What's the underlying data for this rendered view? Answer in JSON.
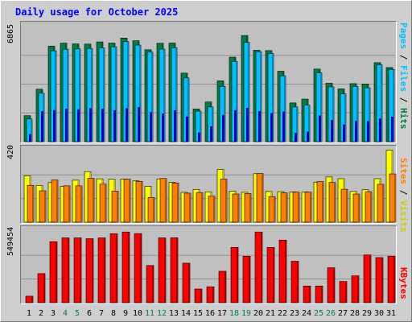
{
  "title": "Daily usage for October 2025",
  "colors": {
    "hits": "#008040",
    "files": "#00c0ff",
    "pages": "#00c0ff",
    "visits": "#ffff00",
    "sites": "#ff8000",
    "kbytes": "#ff0000",
    "weekday_label": "#000000",
    "weekend_label": "#007f46"
  },
  "chart_data": [
    {
      "type": "bar",
      "name": "hits_files_pages",
      "y_max_label": "6865",
      "ylim": [
        0,
        6865
      ],
      "right_label": {
        "pages": "Pages",
        "files": "Files",
        "hits": "Hits",
        "sep": " / "
      },
      "categories": [
        "1",
        "2",
        "3",
        "4",
        "5",
        "6",
        "7",
        "8",
        "9",
        "10",
        "11",
        "12",
        "13",
        "14",
        "15",
        "16",
        "17",
        "18",
        "19",
        "20",
        "21",
        "22",
        "23",
        "24",
        "25",
        "26",
        "27",
        "28",
        "29",
        "30",
        "31"
      ],
      "weekend_days": [
        "4",
        "5",
        "11",
        "12",
        "18",
        "19",
        "25",
        "26"
      ],
      "series": [
        {
          "name": "Hits",
          "values": [
            1550,
            3130,
            5700,
            5875,
            5830,
            5820,
            5950,
            5880,
            6180,
            6020,
            5480,
            5870,
            5880,
            4090,
            1950,
            2370,
            3630,
            5040,
            6330,
            5450,
            5430,
            4200,
            2310,
            2540,
            4330,
            3480,
            3150,
            3460,
            3440,
            4710,
            4420
          ]
        },
        {
          "name": "Files",
          "values": [
            1350,
            2890,
            5420,
            5510,
            5530,
            5560,
            5590,
            5660,
            5970,
            5760,
            5340,
            5520,
            5600,
            3800,
            1820,
            2070,
            3300,
            4790,
            5920,
            5370,
            5260,
            3930,
            2070,
            2180,
            4100,
            3270,
            2850,
            3300,
            3210,
            4590,
            4310
          ]
        },
        {
          "name": "Pages",
          "values": [
            450,
            1820,
            1880,
            1960,
            1930,
            2000,
            1960,
            1880,
            1990,
            2060,
            1760,
            1680,
            1870,
            1500,
            550,
            920,
            1600,
            1880,
            2020,
            1820,
            1700,
            1800,
            520,
            600,
            1560,
            1290,
            1020,
            1240,
            1230,
            1380,
            1490
          ]
        }
      ]
    },
    {
      "type": "bar",
      "name": "visits_sites",
      "y_max_label": "420",
      "ylim": [
        0,
        420
      ],
      "right_label": {
        "sites": "Sites",
        "visits": "Visits",
        "sep": " / "
      },
      "categories": [
        "1",
        "2",
        "3",
        "4",
        "5",
        "6",
        "7",
        "8",
        "9",
        "10",
        "11",
        "12",
        "13",
        "14",
        "15",
        "16",
        "17",
        "18",
        "19",
        "20",
        "21",
        "22",
        "23",
        "24",
        "25",
        "26",
        "27",
        "28",
        "29",
        "30",
        "31"
      ],
      "series": [
        {
          "name": "Visits",
          "values": [
            272,
            215,
            232,
            210,
            246,
            296,
            254,
            252,
            252,
            242,
            210,
            254,
            233,
            175,
            192,
            178,
            309,
            181,
            175,
            284,
            180,
            179,
            177,
            177,
            235,
            265,
            255,
            180,
            190,
            255,
            422
          ]
        },
        {
          "name": "Sites",
          "values": [
            216,
            184,
            247,
            213,
            213,
            257,
            223,
            182,
            252,
            239,
            145,
            256,
            229,
            170,
            174,
            153,
            253,
            165,
            168,
            285,
            150,
            172,
            176,
            176,
            238,
            233,
            193,
            165,
            179,
            222,
            283
          ]
        }
      ]
    },
    {
      "type": "bar",
      "name": "kbytes",
      "y_max_label": "549454",
      "ylim": [
        0,
        549454
      ],
      "right_label": {
        "kbytes": "KBytes"
      },
      "categories": [
        "1",
        "2",
        "3",
        "4",
        "5",
        "6",
        "7",
        "8",
        "9",
        "10",
        "11",
        "12",
        "13",
        "14",
        "15",
        "16",
        "17",
        "18",
        "19",
        "20",
        "21",
        "22",
        "23",
        "24",
        "25",
        "26",
        "27",
        "28",
        "29",
        "30",
        "31"
      ],
      "series": [
        {
          "name": "KBytes",
          "values": [
            50000,
            223000,
            468000,
            497000,
            497000,
            491000,
            497000,
            529000,
            542000,
            530000,
            285000,
            497000,
            498000,
            303000,
            105000,
            122000,
            241000,
            424000,
            356000,
            542000,
            424000,
            480000,
            318000,
            128000,
            128000,
            268000,
            163000,
            206000,
            366000,
            346000,
            356000
          ]
        }
      ]
    }
  ]
}
